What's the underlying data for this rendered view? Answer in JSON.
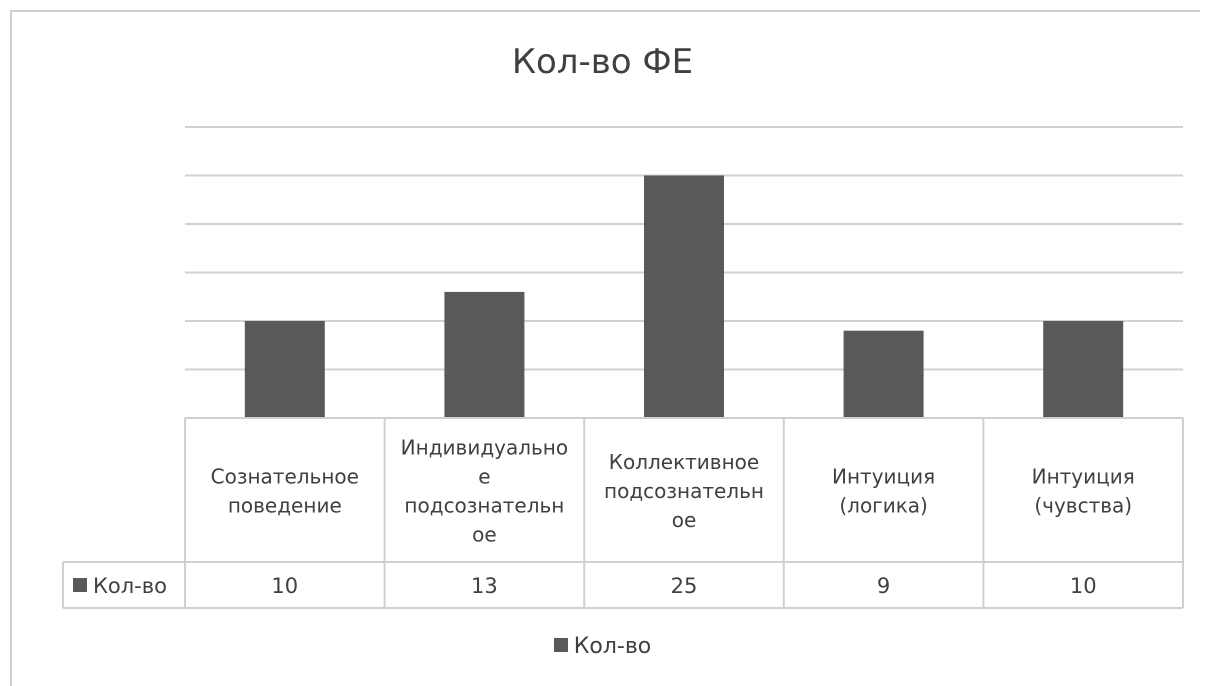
{
  "chart_data": {
    "type": "bar",
    "title": "Кол-во ФЕ",
    "categories": [
      [
        "Сознательное",
        "поведение"
      ],
      [
        "Индивидуально",
        "е",
        "подсознательн",
        "ое"
      ],
      [
        "Коллективное",
        "подсознательн",
        "ое"
      ],
      [
        "Интуиция",
        "(логика)"
      ],
      [
        "Интуиция",
        "(чувства)"
      ]
    ],
    "series": [
      {
        "name": "Кол-во",
        "values": [
          10,
          13,
          25,
          9,
          10
        ],
        "color": "#595959"
      }
    ],
    "ylim": [
      0,
      30
    ],
    "grid": true,
    "data_table": true,
    "legend_position": "bottom"
  }
}
